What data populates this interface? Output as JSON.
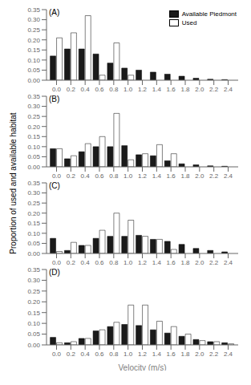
{
  "chart_data": [
    {
      "type": "bar",
      "title": "(A)",
      "x": [
        0.0,
        0.2,
        0.4,
        0.6,
        0.8,
        1.0,
        1.2,
        1.4,
        1.6,
        1.8,
        2.0,
        2.2,
        2.4
      ],
      "series": [
        {
          "name": "Available Piedmont",
          "color": "#1a1a1a",
          "values": [
            0.12,
            0.155,
            0.155,
            0.13,
            0.085,
            0.06,
            0.05,
            0.04,
            0.03,
            0.02,
            0.01,
            0.005,
            0.003
          ]
        },
        {
          "name": "Used",
          "color": "#ffffff",
          "values": [
            0.21,
            0.235,
            0.32,
            0.025,
            0.185,
            0.025,
            0.0,
            0.0,
            0.0,
            0.0,
            0.0,
            0.0,
            0.0
          ]
        }
      ],
      "xlim": [
        -0.14,
        2.54
      ],
      "xticks": [
        {
          "value": 0,
          "label": "0.0"
        },
        0.2,
        0.4,
        0.6,
        0.8,
        {
          "value": 1,
          "label": "1.0"
        },
        1.2,
        1.4,
        1.6,
        1.8,
        {
          "value": 2,
          "label": "2.0"
        },
        2.2,
        2.4
      ],
      "ylim": [
        0.0,
        0.35
      ],
      "yticks": [
        {
          "value": 0,
          "label": "0.00"
        },
        0.05,
        {
          "value": 0.1,
          "label": "0.10"
        },
        0.15,
        {
          "value": 0.2,
          "label": "0.20"
        },
        0.25,
        {
          "value": 0.3,
          "label": "0.30"
        },
        0.35
      ],
      "legend": "upper right",
      "ylabel": "Proportion of used and available habitat"
    },
    {
      "type": "bar",
      "title": "(B)",
      "x": [
        0.0,
        0.2,
        0.4,
        0.6,
        0.8,
        1.0,
        1.2,
        1.4,
        1.6,
        1.8,
        2.0,
        2.2,
        2.4
      ],
      "series": [
        {
          "name": "Available Piedmont",
          "color": "#1a1a1a",
          "values": [
            0.09,
            0.04,
            0.075,
            0.1,
            0.1,
            0.105,
            0.06,
            0.055,
            0.03,
            0.015,
            0.01,
            0.005,
            0.003
          ]
        },
        {
          "name": "Used",
          "color": "#ffffff",
          "values": [
            0.09,
            0.055,
            0.115,
            0.15,
            0.265,
            0.035,
            0.065,
            0.11,
            0.065,
            0.0,
            0.0,
            0.0,
            0.0
          ]
        }
      ],
      "xlim": [
        -0.14,
        2.54
      ],
      "xticks": [
        {
          "value": 0,
          "label": "0.0"
        },
        0.2,
        0.4,
        0.6,
        0.8,
        {
          "value": 1,
          "label": "1.0"
        },
        1.2,
        1.4,
        1.6,
        1.8,
        {
          "value": 2,
          "label": "2.0"
        },
        2.2,
        2.4
      ],
      "ylim": [
        0.0,
        0.35
      ],
      "yticks": [
        {
          "value": 0,
          "label": "0.00"
        },
        0.05,
        {
          "value": 0.1,
          "label": "0.10"
        },
        0.15,
        {
          "value": 0.2,
          "label": "0.20"
        },
        0.25,
        {
          "value": 0.3,
          "label": "0.30"
        },
        0.35
      ]
    },
    {
      "type": "bar",
      "title": "(C)",
      "x": [
        0.0,
        0.2,
        0.4,
        0.6,
        0.8,
        1.0,
        1.2,
        1.4,
        1.6,
        1.8,
        2.0,
        2.2,
        2.4
      ],
      "series": [
        {
          "name": "Available Piedmont",
          "color": "#1a1a1a",
          "values": [
            0.075,
            0.015,
            0.04,
            0.075,
            0.085,
            0.085,
            0.09,
            0.07,
            0.06,
            0.045,
            0.025,
            0.015,
            0.008
          ]
        },
        {
          "name": "Used",
          "color": "#ffffff",
          "values": [
            0.01,
            0.055,
            0.04,
            0.115,
            0.2,
            0.165,
            0.085,
            0.07,
            0.02,
            0.0,
            0.0,
            0.0,
            0.0
          ]
        }
      ],
      "xlim": [
        -0.14,
        2.54
      ],
      "xticks": [
        {
          "value": 0,
          "label": "0.0"
        },
        0.2,
        0.4,
        0.6,
        0.8,
        {
          "value": 1,
          "label": "1.0"
        },
        1.2,
        1.4,
        1.6,
        1.8,
        {
          "value": 2,
          "label": "2.0"
        },
        2.2,
        2.4
      ],
      "ylim": [
        0.0,
        0.35
      ],
      "yticks": [
        {
          "value": 0,
          "label": "0.00"
        },
        0.05,
        {
          "value": 0.1,
          "label": "0.10"
        },
        0.15,
        {
          "value": 0.2,
          "label": "0.20"
        },
        0.25,
        {
          "value": 0.3,
          "label": "0.30"
        },
        0.35
      ]
    },
    {
      "type": "bar",
      "title": "(D)",
      "x": [
        0.0,
        0.2,
        0.4,
        0.6,
        0.8,
        1.0,
        1.2,
        1.4,
        1.6,
        1.8,
        2.0,
        2.2,
        2.4
      ],
      "series": [
        {
          "name": "Available Piedmont",
          "color": "#1a1a1a",
          "values": [
            0.035,
            0.01,
            0.03,
            0.065,
            0.085,
            0.095,
            0.09,
            0.07,
            0.055,
            0.04,
            0.025,
            0.015,
            0.01
          ]
        },
        {
          "name": "Used",
          "color": "#ffffff",
          "values": [
            0.01,
            0.015,
            0.03,
            0.07,
            0.105,
            0.185,
            0.185,
            0.11,
            0.085,
            0.05,
            0.02,
            0.015,
            0.005
          ]
        }
      ],
      "xlim": [
        -0.14,
        2.54
      ],
      "xticks": [
        {
          "value": 0,
          "label": "0.0"
        },
        0.2,
        0.4,
        0.6,
        0.8,
        {
          "value": 1,
          "label": "1.0"
        },
        1.2,
        1.4,
        1.6,
        1.8,
        {
          "value": 2,
          "label": "2.0"
        },
        2.2,
        2.4
      ],
      "ylim": [
        0.0,
        0.35
      ],
      "yticks": [
        {
          "value": 0,
          "label": "0.00"
        },
        0.05,
        {
          "value": 0.1,
          "label": "0.10"
        },
        0.15,
        {
          "value": 0.2,
          "label": "0.20"
        },
        0.25,
        {
          "value": 0.3,
          "label": "0.30"
        },
        0.35
      ],
      "xlabel": "Velocity (m/s)"
    }
  ]
}
